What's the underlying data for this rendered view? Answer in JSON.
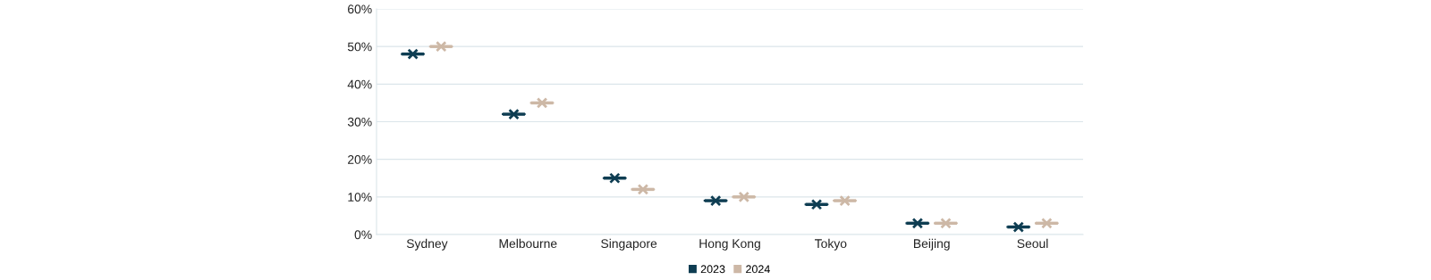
{
  "chart_data": {
    "type": "box",
    "categories": [
      "Sydney",
      "Melbourne",
      "Singapore",
      "Hong Kong",
      "Tokyo",
      "Beijing",
      "Seoul"
    ],
    "series": [
      {
        "name": "2023",
        "color": "#0e3d52",
        "boxes": [
          {
            "low": 48,
            "q1": 48,
            "median": 48,
            "q3": 48,
            "high": 48,
            "mean": 48
          },
          {
            "low": 32,
            "q1": 32,
            "median": 32,
            "q3": 32,
            "high": 32,
            "mean": 32
          },
          {
            "low": 15,
            "q1": 15,
            "median": 15,
            "q3": 15,
            "high": 15,
            "mean": 15
          },
          {
            "low": 9,
            "q1": 9,
            "median": 9,
            "q3": 9,
            "high": 9,
            "mean": 9
          },
          {
            "low": 8,
            "q1": 8,
            "median": 8,
            "q3": 8,
            "high": 8,
            "mean": 8
          },
          {
            "low": 3,
            "q1": 3,
            "median": 3,
            "q3": 3,
            "high": 3,
            "mean": 3
          },
          {
            "low": 2,
            "q1": 2,
            "median": 2,
            "q3": 2,
            "high": 2,
            "mean": 2
          }
        ]
      },
      {
        "name": "2024",
        "color": "#cdb8a6",
        "boxes": [
          {
            "low": 50,
            "q1": 50,
            "median": 50,
            "q3": 50,
            "high": 50,
            "mean": 50
          },
          {
            "low": 35,
            "q1": 35,
            "median": 35,
            "q3": 35,
            "high": 35,
            "mean": 35
          },
          {
            "low": 12,
            "q1": 12,
            "median": 12,
            "q3": 12,
            "high": 12,
            "mean": 12
          },
          {
            "low": 10,
            "q1": 10,
            "median": 10,
            "q3": 10,
            "high": 10,
            "mean": 10
          },
          {
            "low": 9,
            "q1": 9,
            "median": 9,
            "q3": 9,
            "high": 9,
            "mean": 9
          },
          {
            "low": 3,
            "q1": 3,
            "median": 3,
            "q3": 3,
            "high": 3,
            "mean": 3
          },
          {
            "low": 3,
            "q1": 3,
            "median": 3,
            "q3": 3,
            "high": 3,
            "mean": 3
          }
        ]
      }
    ],
    "ylim": [
      0,
      60
    ],
    "yticks": [
      {
        "value": 0,
        "label": "0%"
      },
      {
        "value": 10,
        "label": "10%"
      },
      {
        "value": 20,
        "label": "20%"
      },
      {
        "value": 30,
        "label": "30%"
      },
      {
        "value": 40,
        "label": "40%"
      },
      {
        "value": 50,
        "label": "50%"
      },
      {
        "value": 60,
        "label": "60%"
      }
    ],
    "grid": "y",
    "legend": "bottom",
    "marker": "cross"
  }
}
